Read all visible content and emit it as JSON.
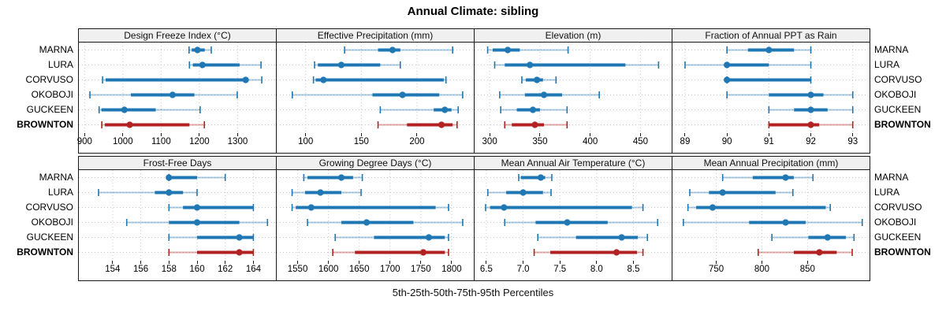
{
  "title": "Annual Climate: sibling",
  "caption": "5th-25th-50th-75th-95th Percentiles",
  "stations": [
    "MARNA",
    "LURA",
    "CORVUSO",
    "OKOBOJI",
    "GUCKEEN",
    "BROWNTON"
  ],
  "highlight_station": "BROWNTON",
  "colors": {
    "normal": "#1f77b4",
    "highlight": "#b22222",
    "strip_bg": "#f0f0f0",
    "grid": "#c8c8c8",
    "border": "#1a1a1a"
  },
  "chart_data": {
    "type": "interval-dotplot",
    "percentiles": [
      5,
      25,
      50,
      75,
      95
    ],
    "layout": {
      "rows": 2,
      "cols": 4,
      "legend": "none",
      "grid": "dotted"
    },
    "panels": [
      {
        "title": "Design Freeze Index (°C)",
        "row": 1,
        "xlim": [
          885,
          1400
        ],
        "ticks": [
          900,
          1000,
          1100,
          1200,
          1300
        ],
        "tick_labels": [
          "900",
          "1000",
          "1100",
          "1200",
          "1300"
        ],
        "values": {
          "MARNA": [
            1173,
            1180,
            1195,
            1214,
            1231
          ],
          "LURA": [
            1174,
            1183,
            1208,
            1305,
            1361
          ],
          "CORVUSO": [
            947,
            955,
            1321,
            1326,
            1363
          ],
          "OKOBOJI": [
            914,
            1021,
            1130,
            1187,
            1299
          ],
          "GUCKEEN": [
            938,
            944,
            1004,
            1086,
            1202
          ],
          "BROWNTON": [
            945,
            953,
            1018,
            1174,
            1213
          ]
        }
      },
      {
        "title": "Effective Precipitation (mm)",
        "row": 1,
        "xlim": [
          74,
          251
        ],
        "ticks": [
          100,
          150,
          200
        ],
        "tick_labels": [
          "100",
          "150",
          "200"
        ],
        "values": {
          "MARNA": [
            135,
            165,
            178,
            185,
            232
          ],
          "LURA": [
            108,
            111,
            132,
            167,
            185
          ],
          "CORVUSO": [
            107,
            109,
            116,
            224,
            226
          ],
          "OKOBOJI": [
            88,
            160,
            187,
            220,
            241
          ],
          "GUCKEEN": [
            167,
            215,
            225,
            231,
            237
          ],
          "BROWNTON": [
            165,
            191,
            222,
            232,
            236
          ]
        }
      },
      {
        "title": "Elevation (m)",
        "row": 1,
        "xlim": [
          285,
          481
        ],
        "ticks": [
          300,
          350,
          400,
          450
        ],
        "tick_labels": [
          "300",
          "350",
          "400",
          "450"
        ],
        "values": {
          "MARNA": [
            298,
            303,
            318,
            330,
            378
          ],
          "LURA": [
            305,
            315,
            340,
            435,
            468
          ],
          "CORVUSO": [
            332,
            336,
            347,
            353,
            366
          ],
          "OKOBOJI": [
            310,
            335,
            354,
            372,
            409
          ],
          "GUCKEEN": [
            311,
            327,
            343,
            350,
            377
          ],
          "BROWNTON": [
            315,
            322,
            345,
            354,
            377
          ]
        }
      },
      {
        "title": "Fraction of Annual PPT as Rain",
        "row": 1,
        "xlim": [
          88.7,
          93.4
        ],
        "ticks": [
          89,
          90,
          91,
          92,
          93
        ],
        "tick_labels": [
          "89",
          "90",
          "91",
          "92",
          "93"
        ],
        "values": {
          "MARNA": [
            90,
            90.5,
            91,
            91.6,
            92
          ],
          "LURA": [
            89,
            90,
            90,
            91,
            92
          ],
          "CORVUSO": [
            90,
            90,
            90,
            92,
            92
          ],
          "OKOBOJI": [
            90,
            91,
            92,
            92.3,
            93
          ],
          "GUCKEEN": [
            91,
            91.6,
            92,
            92.4,
            93
          ],
          "BROWNTON": [
            91,
            91,
            92,
            92.2,
            93
          ]
        }
      },
      {
        "title": "Frost-Free Days",
        "row": 2,
        "xlim": [
          151.6,
          165.6
        ],
        "ticks": [
          154,
          156,
          158,
          160,
          162,
          164
        ],
        "tick_labels": [
          "154",
          "156",
          "158",
          "160",
          "162",
          "164"
        ],
        "values": {
          "MARNA": [
            158,
            158,
            158,
            160,
            162
          ],
          "LURA": [
            153,
            157,
            158,
            159,
            160
          ],
          "CORVUSO": [
            158,
            159,
            160,
            164,
            164
          ],
          "OKOBOJI": [
            155,
            158,
            160,
            163,
            165
          ],
          "GUCKEEN": [
            158,
            160,
            163,
            164,
            164
          ],
          "BROWNTON": [
            158,
            160,
            163,
            164,
            164
          ]
        }
      },
      {
        "title": "Growing Degree Days (°C)",
        "row": 2,
        "xlim": [
          1516,
          1836
        ],
        "ticks": [
          1550,
          1600,
          1650,
          1700,
          1750,
          1800
        ],
        "tick_labels": [
          "1550",
          "1600",
          "1650",
          "1700",
          "1750",
          "1800"
        ],
        "values": {
          "MARNA": [
            1560,
            1566,
            1621,
            1640,
            1655
          ],
          "LURA": [
            1541,
            1562,
            1587,
            1621,
            1653
          ],
          "CORVUSO": [
            1541,
            1547,
            1572,
            1774,
            1795
          ],
          "OKOBOJI": [
            1566,
            1621,
            1662,
            1738,
            1818
          ],
          "GUCKEEN": [
            1611,
            1674,
            1763,
            1789,
            1795
          ],
          "BROWNTON": [
            1607,
            1643,
            1754,
            1789,
            1795
          ]
        }
      },
      {
        "title": "Mean Annual Air Temperature (°C)",
        "row": 2,
        "xlim": [
          6.34,
          9.02
        ],
        "ticks": [
          6.5,
          7.0,
          7.5,
          8.0,
          8.5
        ],
        "tick_labels": [
          "6.5",
          "7.0",
          "7.5",
          "8.0",
          "8.5"
        ],
        "values": {
          "MARNA": [
            6.94,
            6.97,
            7.24,
            7.3,
            7.39
          ],
          "LURA": [
            6.52,
            6.77,
            7.0,
            7.27,
            7.38
          ],
          "CORVUSO": [
            6.49,
            6.55,
            6.74,
            8.48,
            8.63
          ],
          "OKOBOJI": [
            6.75,
            7.17,
            7.6,
            8.15,
            8.83
          ],
          "GUCKEEN": [
            7.2,
            7.72,
            8.34,
            8.56,
            8.69
          ],
          "BROWNTON": [
            7.15,
            7.37,
            8.27,
            8.55,
            8.63
          ]
        }
      },
      {
        "title": "Mean Annual Precipitation (mm)",
        "row": 2,
        "xlim": [
          702,
          918
        ],
        "ticks": [
          750,
          800,
          850
        ],
        "tick_labels": [
          "750",
          "800",
          "850"
        ],
        "values": {
          "MARNA": [
            757,
            790,
            826,
            835,
            856
          ],
          "LURA": [
            721,
            742,
            757,
            815,
            834
          ],
          "CORVUSO": [
            719,
            728,
            746,
            870,
            875
          ],
          "OKOBOJI": [
            714,
            786,
            826,
            848,
            910
          ],
          "GUCKEEN": [
            811,
            851,
            872,
            892,
            901
          ],
          "BROWNTON": [
            796,
            835,
            863,
            882,
            899
          ]
        }
      }
    ]
  }
}
